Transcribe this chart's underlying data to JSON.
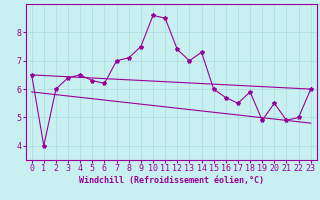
{
  "title": "",
  "xlabel": "Windchill (Refroidissement éolien,°C)",
  "ylabel": "",
  "background_color": "#c8f0f0",
  "line_color": "#990099",
  "xlim": [
    -0.5,
    23.5
  ],
  "ylim": [
    3.5,
    9.0
  ],
  "xticks": [
    0,
    1,
    2,
    3,
    4,
    5,
    6,
    7,
    8,
    9,
    10,
    11,
    12,
    13,
    14,
    15,
    16,
    17,
    18,
    19,
    20,
    21,
    22,
    23
  ],
  "yticks": [
    4,
    5,
    6,
    7,
    8
  ],
  "main_data_x": [
    0,
    1,
    2,
    3,
    4,
    5,
    6,
    7,
    8,
    9,
    10,
    11,
    12,
    13,
    14,
    15,
    16,
    17,
    18,
    19,
    20,
    21,
    22,
    23
  ],
  "main_data_y": [
    6.5,
    4.0,
    6.0,
    6.4,
    6.5,
    6.3,
    6.2,
    7.0,
    7.1,
    7.5,
    8.6,
    8.5,
    7.4,
    7.0,
    7.3,
    6.0,
    5.7,
    5.5,
    5.9,
    4.9,
    5.5,
    4.9,
    5.0,
    6.0
  ],
  "trend1_x": [
    0,
    23
  ],
  "trend1_y": [
    6.5,
    6.0
  ],
  "trend2_x": [
    0,
    23
  ],
  "trend2_y": [
    5.9,
    4.8
  ],
  "grid_color": "#aadddd",
  "marker": "*",
  "marker_size": 3,
  "line_width": 0.8,
  "font_size": 6
}
